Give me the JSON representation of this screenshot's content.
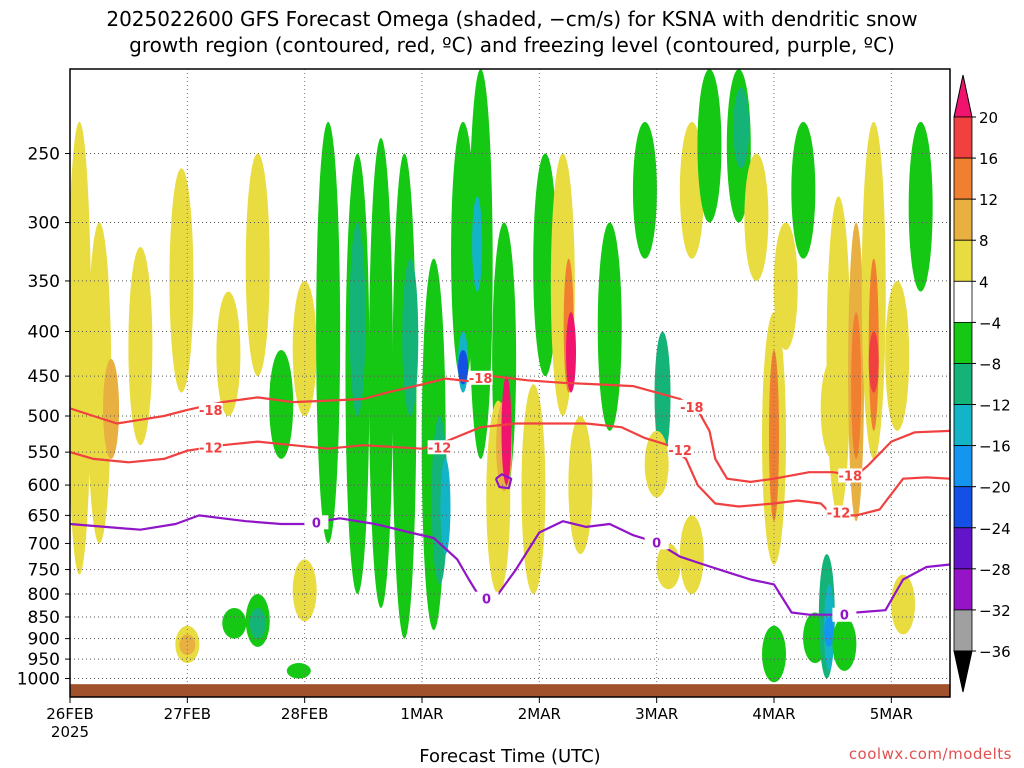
{
  "title": {
    "line1": "2025022600 GFS Forecast Omega (shaded, −cm/s) for KSNA with dendritic snow",
    "line2": "growth region (contoured, red, ºC) and freezing level (contoured, purple, ºC)"
  },
  "credit": "coolwx.com/modelts",
  "chart_data": {
    "type": "heatmap",
    "xlabel": "Forecast Time (UTC)",
    "ylabel": "",
    "x_ticks": [
      {
        "day": 0,
        "label": "26FEB",
        "sub": "2025"
      },
      {
        "day": 1,
        "label": "27FEB",
        "sub": ""
      },
      {
        "day": 2,
        "label": "28FEB",
        "sub": ""
      },
      {
        "day": 3,
        "label": "1MAR",
        "sub": ""
      },
      {
        "day": 4,
        "label": "2MAR",
        "sub": ""
      },
      {
        "day": 5,
        "label": "3MAR",
        "sub": ""
      },
      {
        "day": 6,
        "label": "4MAR",
        "sub": ""
      },
      {
        "day": 7,
        "label": "5MAR",
        "sub": ""
      }
    ],
    "xlim": [
      0,
      7.5
    ],
    "y_ticks": [
      250,
      300,
      350,
      400,
      450,
      500,
      550,
      600,
      650,
      700,
      750,
      800,
      850,
      900,
      950,
      1000
    ],
    "ylim": [
      1050,
      200
    ],
    "y_scale": "log",
    "grid": true,
    "colorbar": {
      "labels": [
        20,
        16,
        12,
        8,
        4,
        -4,
        -8,
        -12,
        -16,
        -20,
        -24,
        -28,
        -32,
        -36
      ],
      "colors": [
        "#f0146e",
        "#f04040",
        "#f08030",
        "#e8b040",
        "#e8dc40",
        "#ffffff",
        "#14c814",
        "#14b478",
        "#14b4c8",
        "#1496f0",
        "#1450e6",
        "#6414c8",
        "#9614c8",
        "#a0a0a0",
        "#000000"
      ]
    },
    "ground_color": "#a0522d",
    "shaded_regions": [
      {
        "value": 4,
        "day": 0.08,
        "p_top": 230,
        "p_bot": 760
      },
      {
        "value": 4,
        "day": 0.25,
        "p_top": 300,
        "p_bot": 700
      },
      {
        "value": 8,
        "day": 0.35,
        "p_top": 430,
        "p_bot": 560
      },
      {
        "value": 4,
        "day": 0.6,
        "p_top": 320,
        "p_bot": 540
      },
      {
        "value": 4,
        "day": 0.95,
        "p_top": 260,
        "p_bot": 470
      },
      {
        "value": 4,
        "day": 1.0,
        "p_top": 870,
        "p_bot": 960
      },
      {
        "value": 8,
        "day": 1.0,
        "p_top": 890,
        "p_bot": 940
      },
      {
        "value": 8,
        "day": 1.35,
        "p_top": 400,
        "p_bot": 450
      },
      {
        "value": 4,
        "day": 1.35,
        "p_top": 360,
        "p_bot": 500
      },
      {
        "value": 4,
        "day": 1.6,
        "p_top": 250,
        "p_bot": 450
      },
      {
        "value": -4,
        "day": 1.6,
        "p_top": 800,
        "p_bot": 920
      },
      {
        "value": -8,
        "day": 1.6,
        "p_top": 830,
        "p_bot": 900
      },
      {
        "value": -4,
        "day": 1.4,
        "p_top": 830,
        "p_bot": 900
      },
      {
        "value": -4,
        "day": 1.8,
        "p_top": 420,
        "p_bot": 560
      },
      {
        "value": 4,
        "day": 2.0,
        "p_top": 350,
        "p_bot": 500
      },
      {
        "value": -4,
        "day": 1.95,
        "p_top": 960,
        "p_bot": 1000
      },
      {
        "value": 4,
        "day": 2.0,
        "p_top": 730,
        "p_bot": 860
      },
      {
        "value": -4,
        "day": 2.2,
        "p_top": 230,
        "p_bot": 700
      },
      {
        "value": -4,
        "day": 2.45,
        "p_top": 250,
        "p_bot": 800
      },
      {
        "value": -8,
        "day": 2.45,
        "p_top": 300,
        "p_bot": 500
      },
      {
        "value": -4,
        "day": 2.65,
        "p_top": 240,
        "p_bot": 830
      },
      {
        "value": -4,
        "day": 2.85,
        "p_top": 250,
        "p_bot": 900
      },
      {
        "value": -8,
        "day": 2.9,
        "p_top": 330,
        "p_bot": 500
      },
      {
        "value": -4,
        "day": 3.1,
        "p_top": 330,
        "p_bot": 880
      },
      {
        "value": -8,
        "day": 3.15,
        "p_top": 500,
        "p_bot": 780
      },
      {
        "value": -12,
        "day": 3.2,
        "p_top": 560,
        "p_bot": 720
      },
      {
        "value": -4,
        "day": 3.35,
        "p_top": 230,
        "p_bot": 460
      },
      {
        "value": -12,
        "day": 3.35,
        "p_top": 400,
        "p_bot": 470
      },
      {
        "value": -20,
        "day": 3.35,
        "p_top": 420,
        "p_bot": 460
      },
      {
        "value": -4,
        "day": 3.5,
        "p_top": 200,
        "p_bot": 560
      },
      {
        "value": -12,
        "day": 3.47,
        "p_top": 280,
        "p_bot": 360
      },
      {
        "value": -4,
        "day": 3.7,
        "p_top": 300,
        "p_bot": 620
      },
      {
        "value": 4,
        "day": 3.65,
        "p_top": 480,
        "p_bot": 800
      },
      {
        "value": 8,
        "day": 3.7,
        "p_top": 480,
        "p_bot": 610
      },
      {
        "value": 20,
        "day": 3.72,
        "p_top": 450,
        "p_bot": 600
      },
      {
        "value": 4,
        "day": 3.95,
        "p_top": 460,
        "p_bot": 800
      },
      {
        "value": -4,
        "day": 4.05,
        "p_top": 250,
        "p_bot": 450
      },
      {
        "value": 4,
        "day": 4.2,
        "p_top": 250,
        "p_bot": 500
      },
      {
        "value": 12,
        "day": 4.25,
        "p_top": 330,
        "p_bot": 470
      },
      {
        "value": 20,
        "day": 4.27,
        "p_top": 380,
        "p_bot": 470
      },
      {
        "value": 4,
        "day": 4.35,
        "p_top": 500,
        "p_bot": 720
      },
      {
        "value": -4,
        "day": 4.6,
        "p_top": 300,
        "p_bot": 520
      },
      {
        "value": -4,
        "day": 4.9,
        "p_top": 230,
        "p_bot": 330
      },
      {
        "value": -8,
        "day": 5.05,
        "p_top": 400,
        "p_bot": 560
      },
      {
        "value": 4,
        "day": 5.0,
        "p_top": 520,
        "p_bot": 620
      },
      {
        "value": 4,
        "day": 5.1,
        "p_top": 700,
        "p_bot": 790
      },
      {
        "value": 4,
        "day": 5.3,
        "p_top": 650,
        "p_bot": 800
      },
      {
        "value": 4,
        "day": 5.3,
        "p_top": 230,
        "p_bot": 330
      },
      {
        "value": -4,
        "day": 5.45,
        "p_top": 200,
        "p_bot": 300
      },
      {
        "value": -4,
        "day": 5.7,
        "p_top": 200,
        "p_bot": 300
      },
      {
        "value": -8,
        "day": 5.72,
        "p_top": 210,
        "p_bot": 260
      },
      {
        "value": 4,
        "day": 5.85,
        "p_top": 250,
        "p_bot": 350
      },
      {
        "value": 4,
        "day": 6.0,
        "p_top": 380,
        "p_bot": 740
      },
      {
        "value": 12,
        "day": 6.0,
        "p_top": 420,
        "p_bot": 660
      },
      {
        "value": 4,
        "day": 6.1,
        "p_top": 300,
        "p_bot": 420
      },
      {
        "value": -4,
        "day": 6.0,
        "p_top": 870,
        "p_bot": 1010
      },
      {
        "value": -4,
        "day": 6.25,
        "p_top": 230,
        "p_bot": 330
      },
      {
        "value": 4,
        "day": 6.5,
        "p_top": 430,
        "p_bot": 560
      },
      {
        "value": -4,
        "day": 6.35,
        "p_top": 840,
        "p_bot": 960
      },
      {
        "value": -8,
        "day": 6.45,
        "p_top": 720,
        "p_bot": 1000
      },
      {
        "value": -12,
        "day": 6.47,
        "p_top": 780,
        "p_bot": 980
      },
      {
        "value": -16,
        "day": 6.47,
        "p_top": 850,
        "p_bot": 920
      },
      {
        "value": -4,
        "day": 6.6,
        "p_top": 850,
        "p_bot": 980
      },
      {
        "value": 4,
        "day": 6.55,
        "p_top": 280,
        "p_bot": 650
      },
      {
        "value": 8,
        "day": 6.7,
        "p_top": 300,
        "p_bot": 660
      },
      {
        "value": 12,
        "day": 6.7,
        "p_top": 380,
        "p_bot": 560
      },
      {
        "value": 4,
        "day": 6.85,
        "p_top": 230,
        "p_bot": 560
      },
      {
        "value": 12,
        "day": 6.85,
        "p_top": 330,
        "p_bot": 520
      },
      {
        "value": 16,
        "day": 6.85,
        "p_top": 400,
        "p_bot": 470
      },
      {
        "value": 4,
        "day": 7.05,
        "p_top": 350,
        "p_bot": 520
      },
      {
        "value": 4,
        "day": 7.1,
        "p_top": 760,
        "p_bot": 890
      },
      {
        "value": -4,
        "day": 7.25,
        "p_top": 230,
        "p_bot": 360
      }
    ],
    "contours": [
      {
        "name": "-18",
        "color": "#f04040",
        "label_at": [
          [
            1.2,
            492
          ],
          [
            3.5,
            452
          ],
          [
            5.3,
            488
          ],
          [
            6.65,
            585
          ]
        ],
        "points": [
          [
            0,
            490
          ],
          [
            0.2,
            500
          ],
          [
            0.4,
            510
          ],
          [
            0.6,
            505
          ],
          [
            0.8,
            500
          ],
          [
            1.0,
            492
          ],
          [
            1.3,
            482
          ],
          [
            1.6,
            476
          ],
          [
            1.9,
            482
          ],
          [
            2.2,
            480
          ],
          [
            2.5,
            478
          ],
          [
            2.7,
            470
          ],
          [
            3.0,
            460
          ],
          [
            3.2,
            453
          ],
          [
            3.4,
            456
          ],
          [
            3.6,
            450
          ],
          [
            3.9,
            455
          ],
          [
            4.2,
            458
          ],
          [
            4.5,
            460
          ],
          [
            4.8,
            462
          ],
          [
            5.0,
            470
          ],
          [
            5.2,
            478
          ],
          [
            5.35,
            492
          ],
          [
            5.45,
            520
          ],
          [
            5.5,
            560
          ],
          [
            5.6,
            590
          ],
          [
            5.8,
            595
          ],
          [
            6.0,
            590
          ],
          [
            6.3,
            580
          ],
          [
            6.5,
            580
          ],
          [
            6.7,
            585
          ],
          [
            6.8,
            570
          ],
          [
            7.0,
            535
          ],
          [
            7.2,
            522
          ],
          [
            7.5,
            520
          ]
        ]
      },
      {
        "name": "-12",
        "color": "#f04040",
        "label_at": [
          [
            1.2,
            543
          ],
          [
            3.15,
            543
          ],
          [
            5.2,
            547
          ],
          [
            6.55,
            645
          ]
        ],
        "points": [
          [
            0,
            550
          ],
          [
            0.2,
            560
          ],
          [
            0.5,
            565
          ],
          [
            0.8,
            560
          ],
          [
            1.0,
            548
          ],
          [
            1.3,
            540
          ],
          [
            1.6,
            535
          ],
          [
            1.9,
            540
          ],
          [
            2.2,
            545
          ],
          [
            2.5,
            540
          ],
          [
            2.8,
            543
          ],
          [
            3.0,
            545
          ],
          [
            3.2,
            535
          ],
          [
            3.5,
            515
          ],
          [
            3.8,
            510
          ],
          [
            4.1,
            510
          ],
          [
            4.4,
            510
          ],
          [
            4.7,
            515
          ],
          [
            4.9,
            530
          ],
          [
            5.1,
            540
          ],
          [
            5.25,
            560
          ],
          [
            5.35,
            600
          ],
          [
            5.5,
            630
          ],
          [
            5.7,
            635
          ],
          [
            6.0,
            630
          ],
          [
            6.2,
            625
          ],
          [
            6.4,
            630
          ],
          [
            6.5,
            650
          ],
          [
            6.7,
            650
          ],
          [
            6.9,
            640
          ],
          [
            7.1,
            590
          ],
          [
            7.3,
            588
          ],
          [
            7.5,
            590
          ]
        ]
      },
      {
        "name": "0",
        "color": "#9014c8",
        "label_at": [
          [
            2.1,
            662
          ],
          [
            3.55,
            810
          ],
          [
            5.0,
            698
          ],
          [
            6.6,
            845
          ]
        ],
        "points": [
          [
            0,
            665
          ],
          [
            0.3,
            670
          ],
          [
            0.6,
            675
          ],
          [
            0.9,
            665
          ],
          [
            1.1,
            650
          ],
          [
            1.3,
            655
          ],
          [
            1.5,
            660
          ],
          [
            1.8,
            665
          ],
          [
            2.0,
            665
          ],
          [
            2.3,
            655
          ],
          [
            2.6,
            665
          ],
          [
            2.9,
            680
          ],
          [
            3.1,
            690
          ],
          [
            3.3,
            730
          ],
          [
            3.4,
            770
          ],
          [
            3.5,
            810
          ],
          [
            3.65,
            800
          ],
          [
            3.8,
            750
          ],
          [
            4.0,
            680
          ],
          [
            4.2,
            660
          ],
          [
            4.4,
            670
          ],
          [
            4.6,
            665
          ],
          [
            4.8,
            685
          ],
          [
            5.0,
            698
          ],
          [
            5.2,
            725
          ],
          [
            5.4,
            740
          ],
          [
            5.6,
            755
          ],
          [
            5.8,
            770
          ],
          [
            6.0,
            780
          ],
          [
            6.15,
            840
          ],
          [
            6.3,
            845
          ],
          [
            6.5,
            845
          ],
          [
            6.7,
            840
          ],
          [
            6.95,
            835
          ],
          [
            7.1,
            770
          ],
          [
            7.3,
            745
          ],
          [
            7.5,
            740
          ]
        ]
      },
      {
        "name": "",
        "color": "#9014c8",
        "label_at": [],
        "points": [
          [
            3.63,
            590
          ],
          [
            3.68,
            583
          ],
          [
            3.76,
            590
          ],
          [
            3.74,
            605
          ],
          [
            3.66,
            603
          ],
          [
            3.63,
            590
          ]
        ]
      }
    ]
  }
}
